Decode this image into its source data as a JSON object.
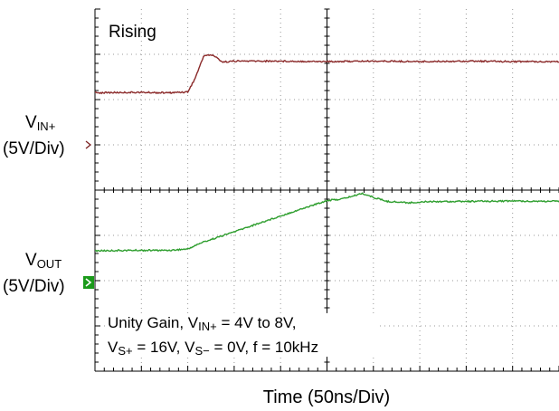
{
  "chart_data": {
    "type": "line",
    "title": "Rising",
    "xlabel": "Time  (50ns/Div)",
    "x_divisions": 10,
    "y_divisions": 8,
    "grid": true,
    "channels": [
      {
        "label_main": "V",
        "label_sub": "IN+",
        "scale": "(5V/Div)",
        "marker_color": "#7a2020",
        "color": "#8b2a2a"
      },
      {
        "label_main": "V",
        "label_sub": "OUT",
        "scale": "(5V/Div)",
        "marker_color": "#1a9a1a",
        "color": "#2e9e2e"
      }
    ],
    "series": [
      {
        "name": "VIN+",
        "unit": "div",
        "x": [
          0,
          0.9,
          1.6,
          2.0,
          2.15,
          2.35,
          2.55,
          2.75,
          3,
          4,
          5,
          6,
          7,
          8,
          9,
          10
        ],
        "y": [
          6.15,
          6.16,
          6.15,
          6.17,
          6.45,
          6.98,
          6.98,
          6.83,
          6.85,
          6.85,
          6.84,
          6.85,
          6.84,
          6.85,
          6.84,
          6.84
        ]
      },
      {
        "name": "VOUT",
        "unit": "div",
        "x": [
          0,
          0.9,
          1.6,
          2.0,
          2.3,
          3,
          4,
          5,
          5.3,
          5.6,
          5.75,
          6.0,
          6.3,
          6.8,
          7.2,
          8,
          9,
          10
        ],
        "y": [
          2.66,
          2.67,
          2.67,
          2.7,
          2.84,
          3.08,
          3.43,
          3.77,
          3.8,
          3.88,
          3.93,
          3.84,
          3.75,
          3.72,
          3.75,
          3.75,
          3.76,
          3.75
        ]
      }
    ],
    "annotations": {
      "line1_a": "Unity Gain, V",
      "line1_sub": "IN+",
      "line1_b": " = 4V to 8V,",
      "line2_a": "V",
      "line2_sub1": "S+",
      "line2_b": " = 16V, V",
      "line2_sub2": "S−",
      "line2_c": " = 0V, f = 10kHz"
    }
  }
}
